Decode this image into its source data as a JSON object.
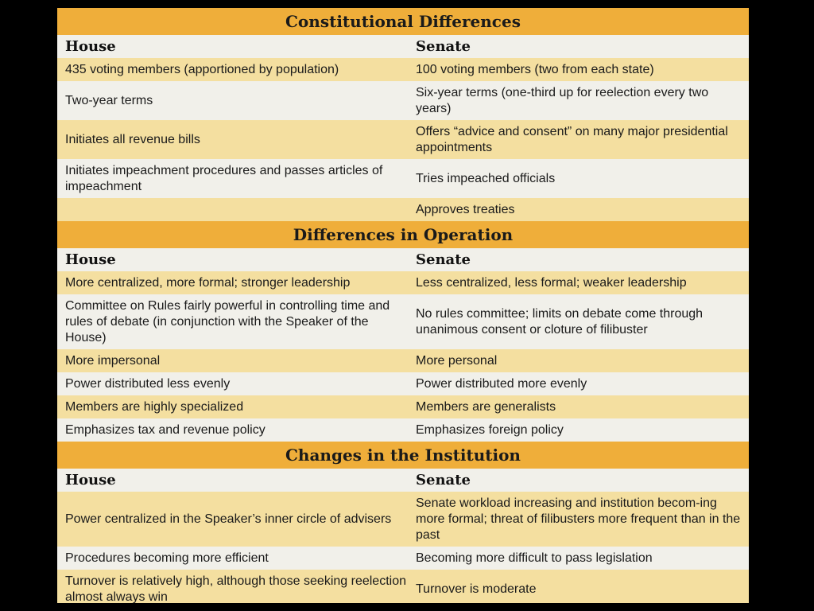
{
  "sections": [
    {
      "title": "Constitutional Differences",
      "col1": "House",
      "col2": "Senate",
      "rows": [
        {
          "house": "435 voting members (apportioned by population)",
          "senate": "100 voting members (two from each state)"
        },
        {
          "house": "Two-year terms",
          "senate": "Six-year terms (one-third up for reelection every two years)"
        },
        {
          "house": "Initiates all revenue bills",
          "senate": "Offers “advice and consent” on many major presidential appointments"
        },
        {
          "house": "Initiates impeachment procedures and passes articles of impeachment",
          "senate": "Tries impeached officials"
        },
        {
          "house": "",
          "senate": "Approves treaties"
        }
      ]
    },
    {
      "title": "Differences in Operation",
      "col1": "House",
      "col2": "Senate",
      "rows": [
        {
          "house": "More centralized, more formal; stronger leadership",
          "senate": "Less centralized, less formal; weaker leadership"
        },
        {
          "house": "Committee on Rules fairly powerful in controlling time and rules of debate (in conjunction with the Speaker of the House)",
          "senate": "No rules committee; limits on debate come through unanimous consent or cloture of filibuster"
        },
        {
          "house": "More impersonal",
          "senate": "More personal"
        },
        {
          "house": "Power distributed less evenly",
          "senate": "Power distributed more evenly"
        },
        {
          "house": "Members are highly specialized",
          "senate": "Members are generalists"
        },
        {
          "house": "Emphasizes tax and revenue policy",
          "senate": "Emphasizes foreign policy"
        }
      ]
    },
    {
      "title": "Changes in the Institution",
      "col1": "House",
      "col2": "Senate",
      "rows": [
        {
          "house": "Power centralized in the Speaker’s inner circle of advisers",
          "senate": "Senate workload increasing and institution becom-ing more formal; threat of filibusters more frequent than in the past"
        },
        {
          "house": "Procedures becoming more efficient",
          "senate": "Becoming more difficult to pass legislation"
        },
        {
          "house": "Turnover is relatively high, although those seeking reelection almost always win",
          "senate": "Turnover is moderate"
        }
      ]
    }
  ]
}
